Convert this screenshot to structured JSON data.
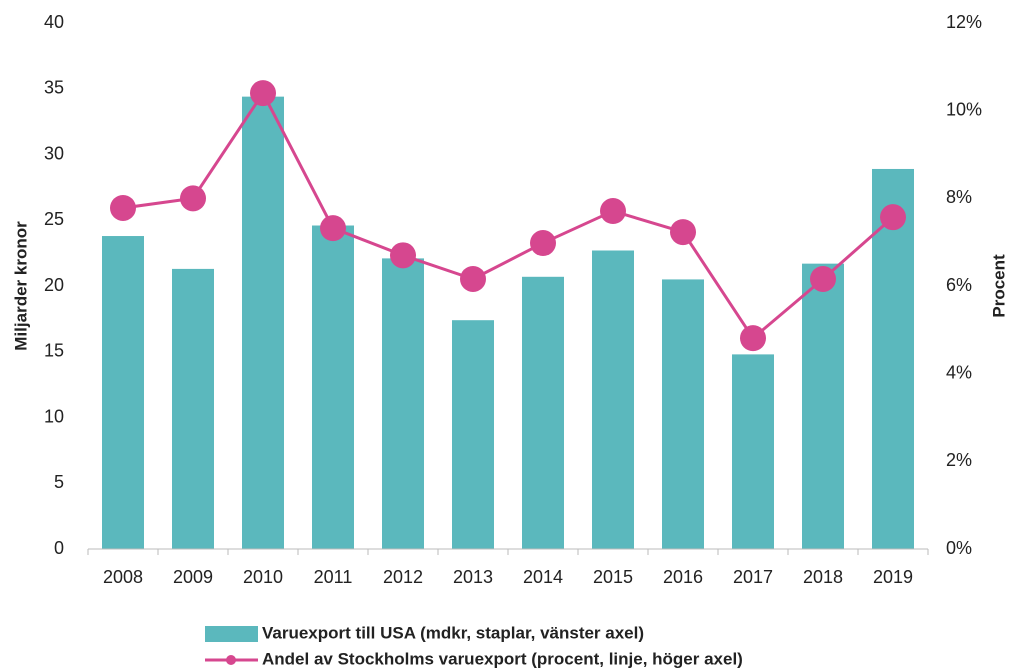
{
  "chart_data": {
    "type": "bar_line",
    "categories": [
      "2008",
      "2009",
      "2010",
      "2011",
      "2012",
      "2013",
      "2014",
      "2015",
      "2016",
      "2017",
      "2018",
      "2019"
    ],
    "series": [
      {
        "name": "Varuexport till USA (mdkr, staplar, vänster axel)",
        "color": "#5bb8bd",
        "type": "bar",
        "values": [
          23.8,
          21.3,
          34.4,
          24.6,
          22.1,
          17.4,
          20.7,
          22.7,
          20.5,
          14.8,
          21.7,
          28.9
        ]
      },
      {
        "name": "Andel av Stockholms varuexport (procent, linje, höger axel)",
        "color": "#d6478f",
        "type": "line",
        "axis": "y2",
        "values": [
          7.78,
          8.0,
          10.4,
          7.32,
          6.7,
          6.16,
          6.98,
          7.71,
          7.23,
          4.81,
          6.16,
          7.57
        ]
      }
    ],
    "ylabel": "Miljarder kronor",
    "y2label": "Procent",
    "ylim": [
      0,
      40
    ],
    "yticks": [
      0,
      5,
      10,
      15,
      20,
      25,
      30,
      35,
      40
    ],
    "y2lim": [
      0,
      12
    ],
    "y2ticks": [
      {
        "value": 0,
        "label": "0%"
      },
      {
        "value": 2,
        "label": "2%"
      },
      {
        "value": 4,
        "label": "4%"
      },
      {
        "value": 6,
        "label": "6%"
      },
      {
        "value": 8,
        "label": "8%"
      },
      {
        "value": 10,
        "label": "10%"
      },
      {
        "value": 12,
        "label": "12%"
      }
    ],
    "legend": "bottom"
  }
}
